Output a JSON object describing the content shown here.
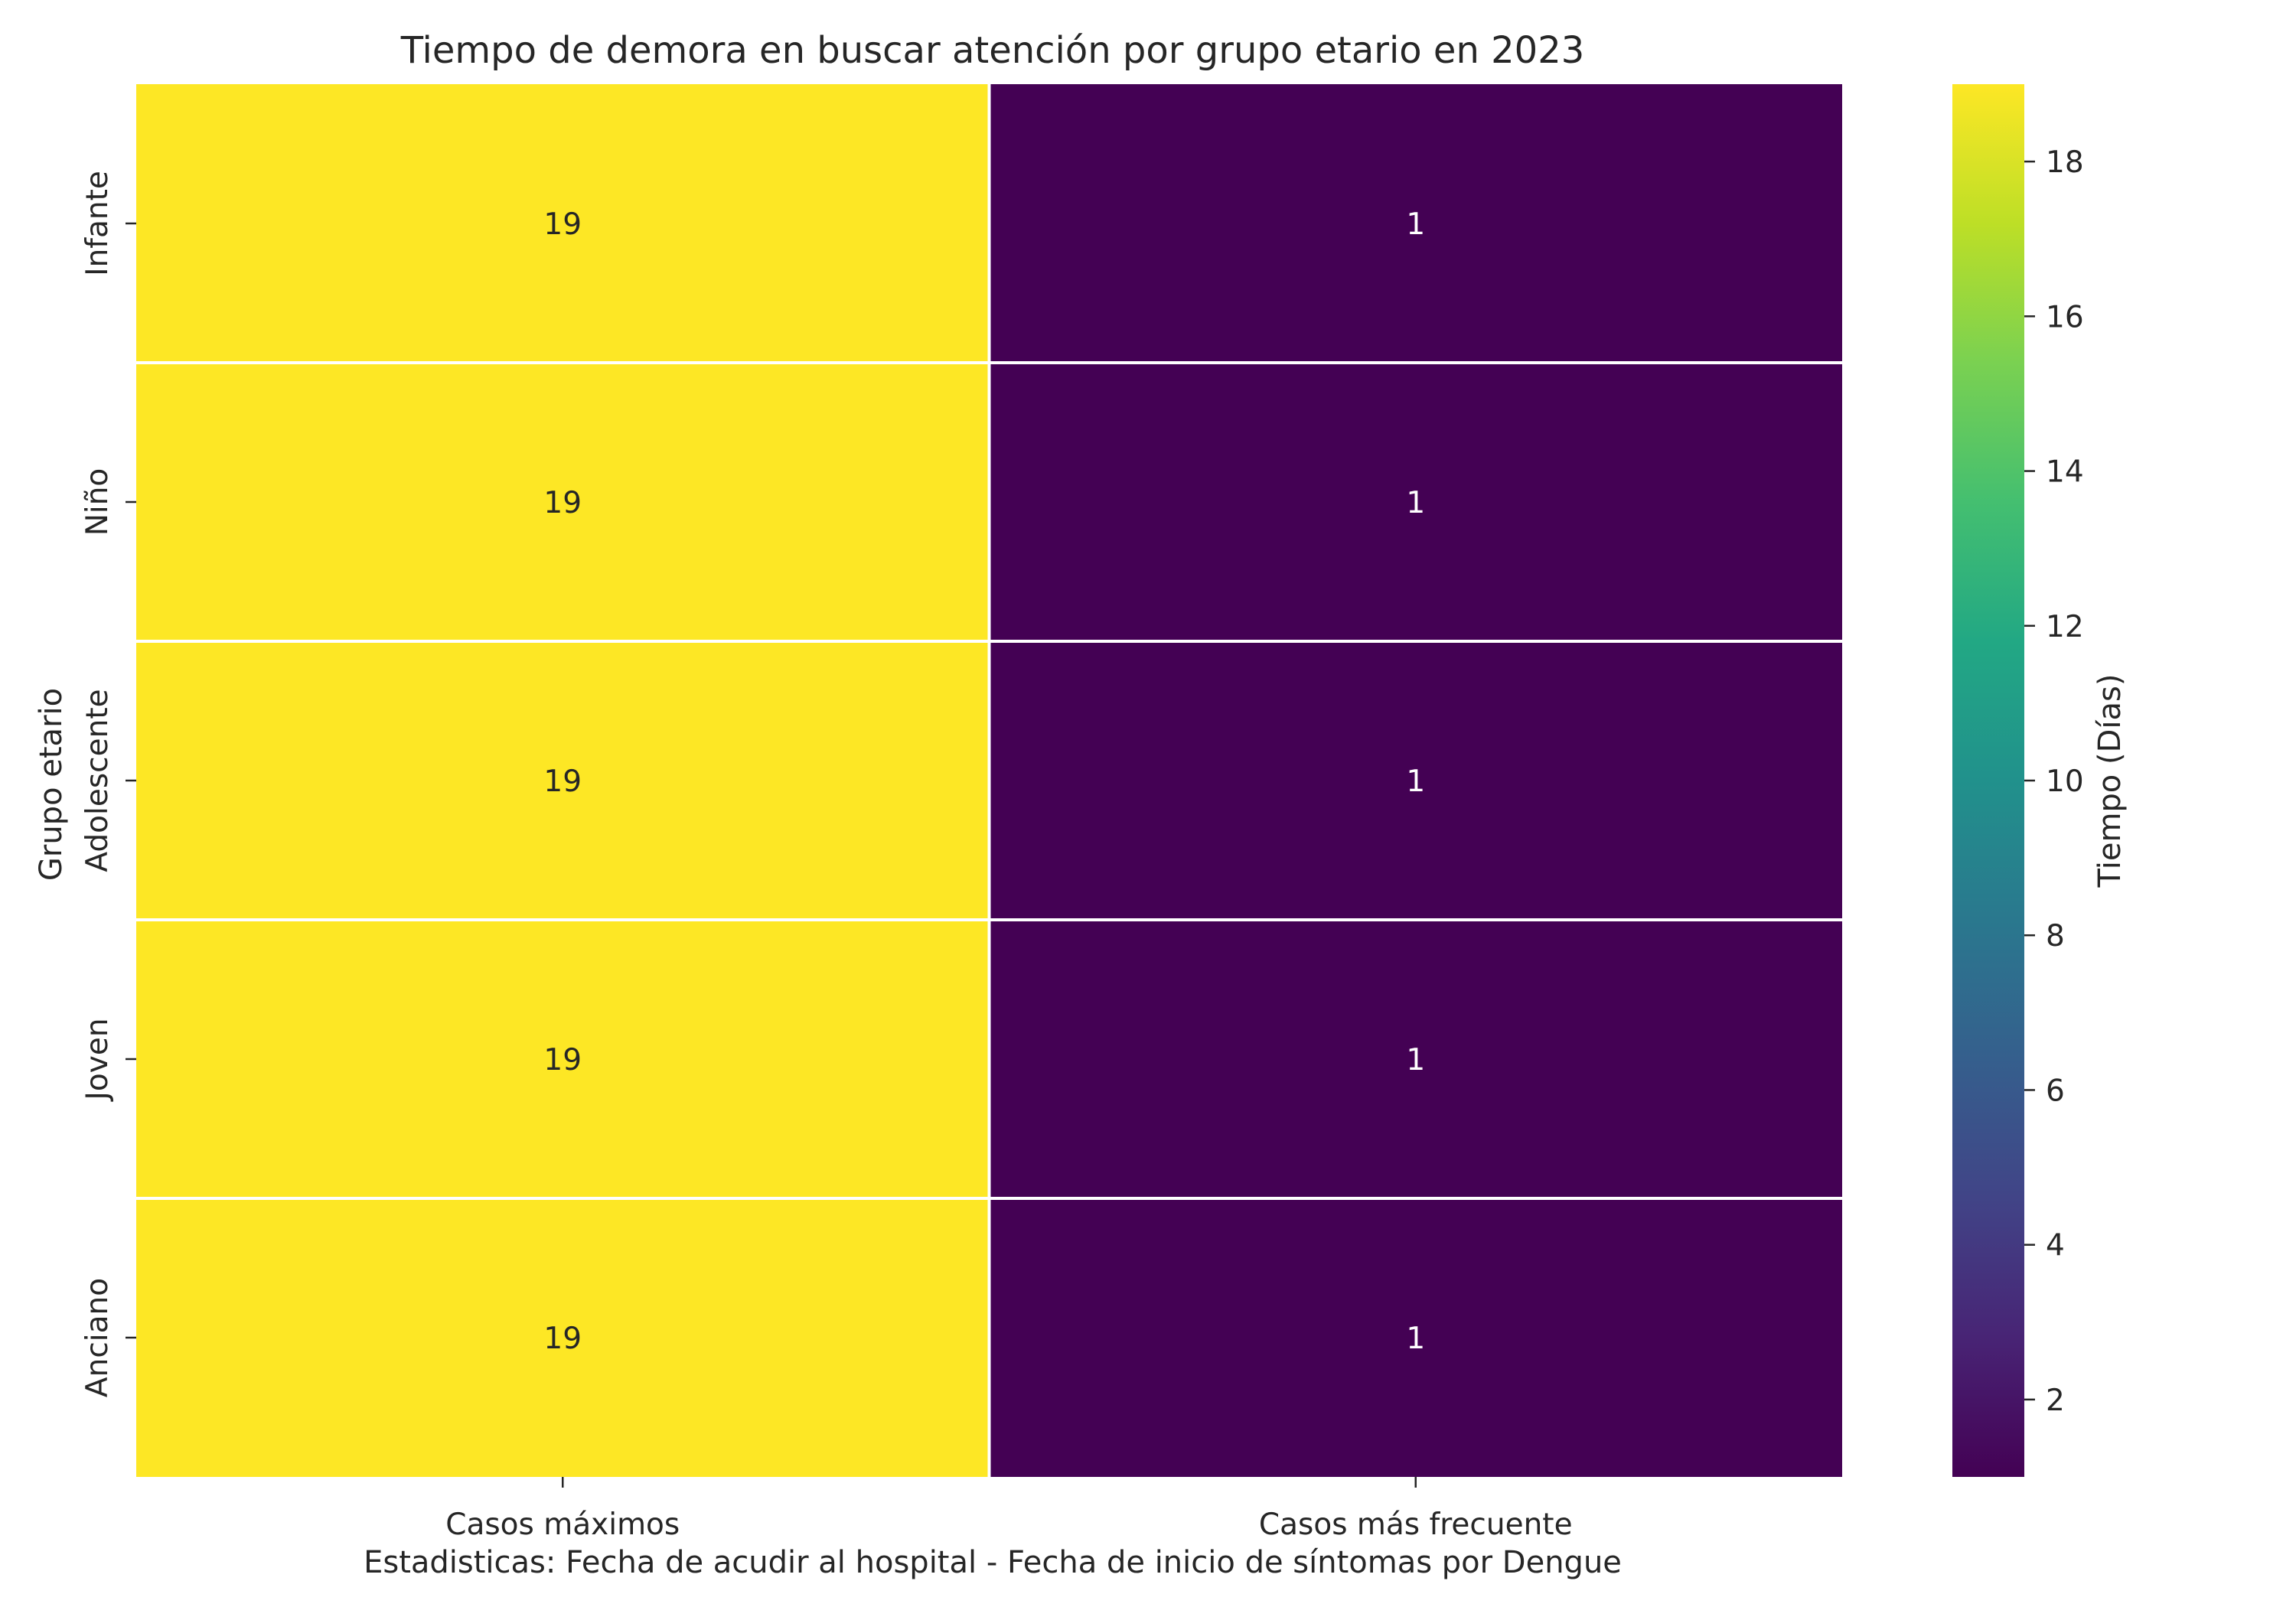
{
  "chart_data": {
    "type": "heatmap",
    "title": "Tiempo de demora en buscar atención por grupo etario en 2023",
    "xlabel": "Estadisticas: Fecha de acudir al hospital - Fecha de inicio de síntomas por Dengue",
    "ylabel": "Grupo etario",
    "columns": [
      "Casos máximos",
      "Casos más frecuente"
    ],
    "rows": [
      "Infante",
      "Niño",
      "Adolescente",
      "Joven",
      "Anciano"
    ],
    "values": [
      [
        19,
        1
      ],
      [
        19,
        1
      ],
      [
        19,
        1
      ],
      [
        19,
        1
      ],
      [
        19,
        1
      ]
    ],
    "colorbar": {
      "label": "Tiempo (Días)",
      "range": [
        1,
        19
      ],
      "ticks": [
        2,
        4,
        6,
        8,
        10,
        12,
        14,
        16,
        18
      ],
      "colormap": "viridis"
    },
    "colors": {
      "low": "#440154",
      "high": "#fde725",
      "text_on_high": "#262626",
      "text_on_low": "#ffffff"
    }
  }
}
